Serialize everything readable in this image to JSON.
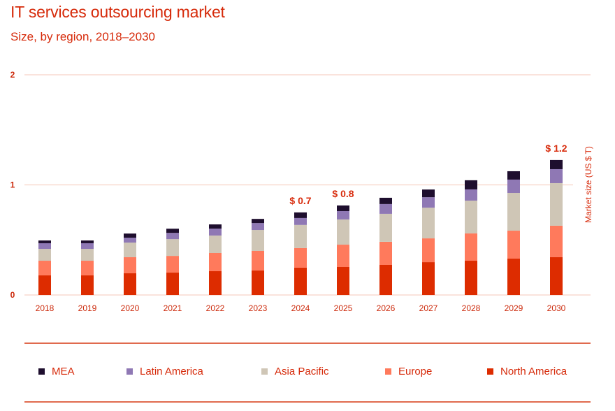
{
  "header": {
    "title": "IT services outsourcing market",
    "subtitle": "Size, by region, 2018–2030"
  },
  "legend": [
    {
      "name": "MEA",
      "color": "#1e0e2e"
    },
    {
      "name": "Latin America",
      "color": "#8f78b4"
    },
    {
      "name": "Asia Pacific",
      "color": "#cfc6b6"
    },
    {
      "name": "Europe",
      "color": "#ff7a5c"
    },
    {
      "name": "North America",
      "color": "#dd2c00"
    }
  ],
  "chart_data": {
    "type": "bar",
    "stacked": true,
    "title": "IT services outsourcing market",
    "subtitle": "Size, by region, 2018–2030",
    "xlabel": "",
    "ylabel": "Market size (US $ T)",
    "ylim": [
      0,
      2
    ],
    "yticks": [
      0,
      1,
      2
    ],
    "grid": true,
    "legend_position": "bottom",
    "categories": [
      "2018",
      "2019",
      "2020",
      "2021",
      "2022",
      "2023",
      "2024",
      "2025",
      "2026",
      "2027",
      "2028",
      "2029",
      "2030"
    ],
    "series": [
      {
        "name": "North America",
        "color": "#dd2c00",
        "values": [
          0.178,
          0.178,
          0.197,
          0.203,
          0.216,
          0.222,
          0.248,
          0.254,
          0.273,
          0.298,
          0.311,
          0.33,
          0.343
        ]
      },
      {
        "name": "Europe",
        "color": "#ff7a5c",
        "values": [
          0.133,
          0.133,
          0.146,
          0.152,
          0.165,
          0.178,
          0.178,
          0.203,
          0.21,
          0.216,
          0.248,
          0.254,
          0.286
        ]
      },
      {
        "name": "Asia Pacific",
        "color": "#cfc6b6",
        "values": [
          0.108,
          0.108,
          0.133,
          0.152,
          0.159,
          0.19,
          0.21,
          0.229,
          0.254,
          0.279,
          0.298,
          0.343,
          0.387
        ]
      },
      {
        "name": "Latin America",
        "color": "#8f78b4",
        "values": [
          0.051,
          0.051,
          0.044,
          0.057,
          0.063,
          0.063,
          0.063,
          0.076,
          0.089,
          0.095,
          0.102,
          0.121,
          0.127
        ]
      },
      {
        "name": "MEA",
        "color": "#1e0e2e",
        "values": [
          0.025,
          0.025,
          0.038,
          0.038,
          0.038,
          0.038,
          0.051,
          0.051,
          0.057,
          0.07,
          0.083,
          0.076,
          0.083
        ]
      }
    ],
    "annotations": [
      {
        "category": "2024",
        "text": "$ 0.7",
        "value": 0.7
      },
      {
        "category": "2025",
        "text": "$ 0.8",
        "value": 0.8
      },
      {
        "category": "2030",
        "text": "$ 1.2",
        "value": 1.2
      }
    ]
  }
}
